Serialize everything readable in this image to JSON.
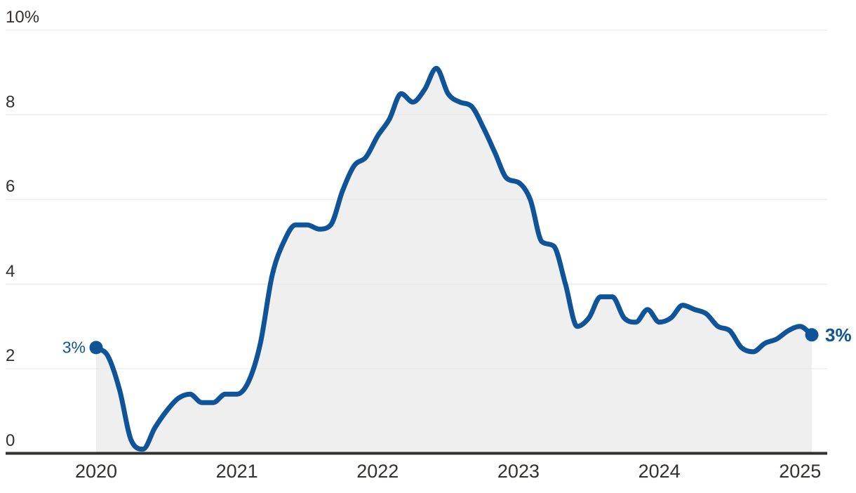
{
  "chart_data": {
    "type": "area",
    "title": "",
    "xlabel": "",
    "ylabel": "",
    "unit": "%",
    "frequency": "monthly",
    "x_start": "Jan 2020",
    "x_end": "Feb 2025",
    "values": [
      2.5,
      2.3,
      1.5,
      0.3,
      0.1,
      0.6,
      1.0,
      1.3,
      1.4,
      1.2,
      1.2,
      1.4,
      1.4,
      1.7,
      2.6,
      4.2,
      5.0,
      5.4,
      5.4,
      5.3,
      5.4,
      6.2,
      6.8,
      7.0,
      7.5,
      7.9,
      8.5,
      8.3,
      8.6,
      9.1,
      8.5,
      8.3,
      8.2,
      7.7,
      7.1,
      6.5,
      6.4,
      6.0,
      5.0,
      4.9,
      4.0,
      3.0,
      3.2,
      3.7,
      3.7,
      3.2,
      3.1,
      3.4,
      3.1,
      3.2,
      3.5,
      3.4,
      3.3,
      3.0,
      2.9,
      2.5,
      2.4,
      2.6,
      2.7,
      2.9,
      3.0,
      2.8
    ],
    "ylim": [
      0,
      10
    ],
    "grid": "horizontal",
    "legend": "none",
    "x_tick_labels": [
      "2020",
      "2021",
      "2022",
      "2023",
      "2024",
      "2025"
    ],
    "x_tick_month_indices": [
      0,
      12,
      24,
      36,
      48,
      60
    ],
    "y_tick_labels": [
      "10%",
      "8",
      "6",
      "4",
      "2",
      "0"
    ],
    "y_tick_values": [
      10,
      8,
      6,
      4,
      2,
      0
    ],
    "annotations": {
      "start": {
        "text": "3%",
        "value": 2.5
      },
      "end": {
        "text": "3%",
        "value": 2.8
      }
    },
    "colors": {
      "line": "#0f5499",
      "area_fill": "#efefef",
      "gridline": "#e6e6e6",
      "axis": "#33302e",
      "tick_text": "#33302e",
      "annotation_text": "#0f5499"
    }
  }
}
